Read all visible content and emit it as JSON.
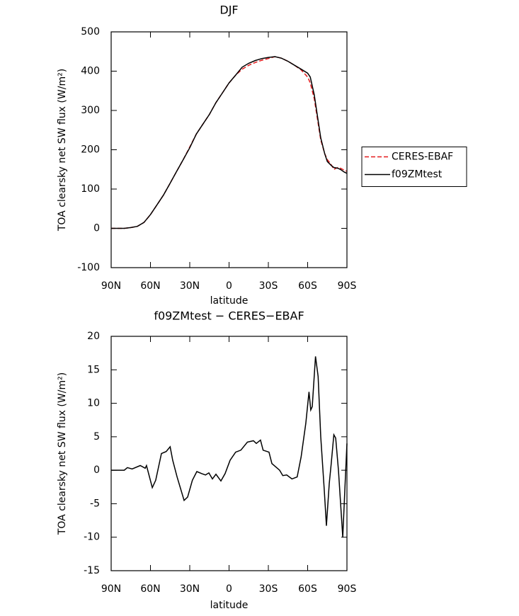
{
  "chart_data": [
    {
      "type": "line",
      "title": "DJF",
      "x_label": "latitude",
      "y_label": "TOA clearsky net SW flux (W/m²)",
      "xlim": [
        90,
        -90
      ],
      "xticks": [
        {
          "value": 90,
          "label": "90N"
        },
        {
          "value": 60,
          "label": "60N"
        },
        {
          "value": 30,
          "label": "30N"
        },
        0,
        {
          "value": -30,
          "label": "30S"
        },
        {
          "value": -60,
          "label": "60S"
        },
        {
          "value": -90,
          "label": "90S"
        }
      ],
      "ylim": [
        -100,
        500
      ],
      "yticks": [
        -100,
        0,
        100,
        200,
        300,
        400,
        500
      ],
      "legend": "right",
      "x": [
        90,
        85,
        80,
        75,
        70,
        65,
        60,
        55,
        50,
        45,
        40,
        35,
        30,
        25,
        20,
        15,
        10,
        5,
        0,
        -5,
        -10,
        -15,
        -20,
        -25,
        -30,
        -35,
        -40,
        -45,
        -50,
        -55,
        -60,
        -62,
        -65,
        -70,
        -73,
        -75,
        -78,
        -80,
        -83,
        -85,
        -88,
        -90
      ],
      "series": [
        {
          "name": "CERES-EBAF",
          "color": "#e41a1c",
          "linestyle": "dashed",
          "values": [
            0,
            0,
            0,
            2,
            5,
            15,
            35,
            60,
            85,
            115,
            145,
            175,
            207,
            240,
            265,
            290,
            320,
            345,
            370,
            390,
            405,
            415,
            422,
            428,
            432,
            437,
            433,
            425,
            415,
            403,
            385,
            370,
            330,
            225,
            190,
            175,
            162,
            150,
            155,
            153,
            148,
            145
          ]
        },
        {
          "name": "f09ZMtest",
          "color": "#000000",
          "linestyle": "solid",
          "values": [
            0,
            0,
            0,
            2,
            5,
            15,
            35,
            60,
            85,
            115,
            145,
            175,
            205,
            240,
            265,
            290,
            320,
            345,
            370,
            390,
            410,
            420,
            427,
            432,
            435,
            437,
            433,
            425,
            415,
            405,
            395,
            385,
            340,
            230,
            190,
            170,
            160,
            155,
            153,
            150,
            143,
            140
          ]
        }
      ]
    },
    {
      "type": "line",
      "title": "f09ZMtest − CERES−EBAF",
      "x_label": "latitude",
      "y_label": "TOA clearsky net SW flux (W/m²)",
      "xlim": [
        90,
        -90
      ],
      "xticks": [
        {
          "value": 90,
          "label": "90N"
        },
        {
          "value": 60,
          "label": "60N"
        },
        {
          "value": 30,
          "label": "30N"
        },
        0,
        {
          "value": -30,
          "label": "30S"
        },
        {
          "value": -60,
          "label": "60S"
        },
        {
          "value": -90,
          "label": "90S"
        }
      ],
      "ylim": [
        -15,
        20
      ],
      "yticks": [
        -15,
        -10,
        -5,
        0,
        5,
        10,
        15,
        20
      ],
      "x": [
        90,
        80,
        77.6,
        74,
        67.8,
        64,
        63,
        61.4,
        58.6,
        56,
        51.6,
        48,
        45,
        43,
        39.7,
        34.3,
        31.6,
        28,
        24.6,
        20.8,
        18,
        15.4,
        12.7,
        10,
        6.2,
        3,
        -0.8,
        -5,
        -9,
        -14,
        -18.6,
        -20.8,
        -24,
        -26,
        -30.5,
        -32.7,
        -38.6,
        -41,
        -44,
        -48,
        -52,
        -55,
        -58.6,
        -61,
        -62.4,
        -63.5,
        -66,
        -68,
        -70,
        -72.7,
        -74.3,
        -76.5,
        -78,
        -80,
        -81.4,
        -83.5,
        -86.8,
        -88.4,
        -90
      ],
      "series": [
        {
          "name": "f09ZMtest",
          "color": "#000000",
          "linestyle": "solid",
          "values": [
            0,
            0,
            0.4,
            0.2,
            0.7,
            0.3,
            0.7,
            -0.5,
            -2.6,
            -1.5,
            2.5,
            2.8,
            3.5,
            1.5,
            -1,
            -4.5,
            -4,
            -1.5,
            -0.2,
            -0.5,
            -0.7,
            -0.4,
            -1.3,
            -0.6,
            -1.6,
            -0.5,
            1.5,
            2.7,
            3,
            4.2,
            4.4,
            4,
            4.5,
            3,
            2.7,
            1,
            0,
            -0.8,
            -0.7,
            -1.3,
            -1,
            2,
            7,
            11.7,
            9,
            9.5,
            17,
            14,
            5,
            -3,
            -8.3,
            -2,
            1,
            5.3,
            4.8,
            0,
            -10,
            -3,
            4
          ]
        }
      ]
    }
  ]
}
